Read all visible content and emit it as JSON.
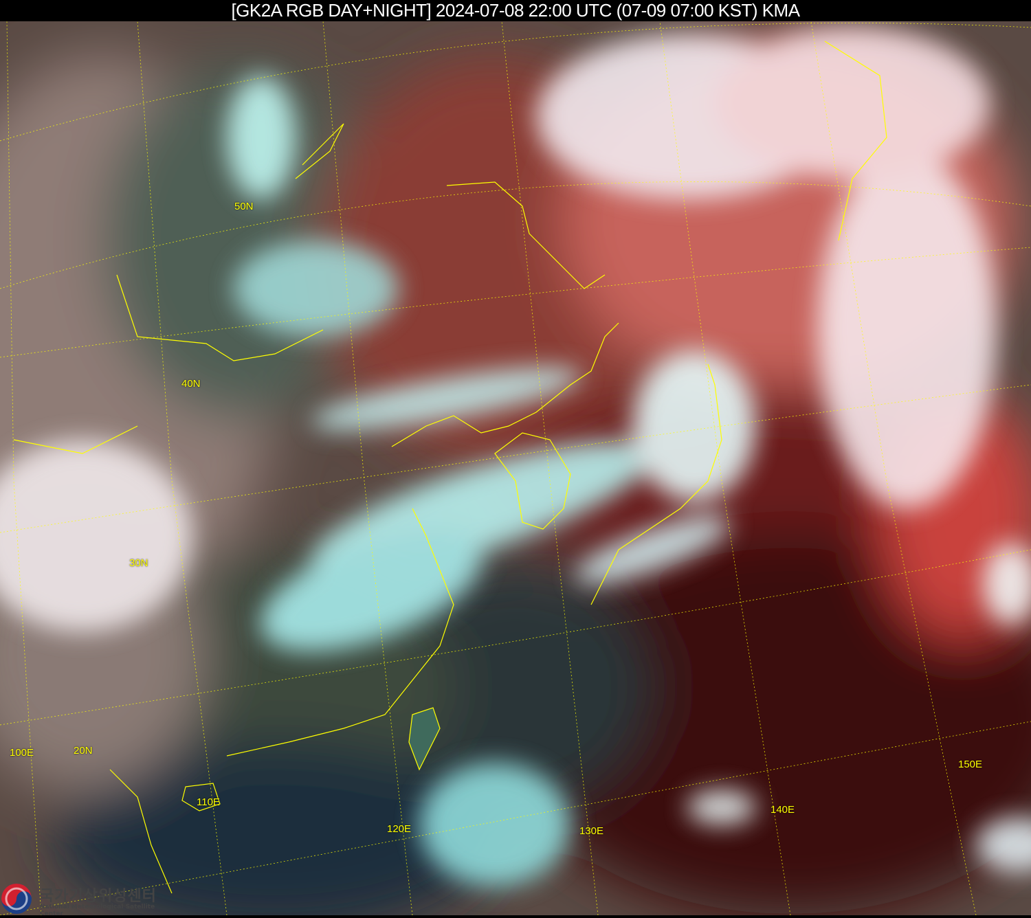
{
  "header": {
    "title": "[GK2A RGB DAY+NIGHT] 2024-07-08 22:00 UTC (07-09 07:00 KST) KMA"
  },
  "map": {
    "latitude_labels": [
      "50N",
      "40N",
      "30N",
      "20N"
    ],
    "longitude_labels": [
      "100E",
      "110E",
      "120E",
      "130E",
      "140E",
      "150E"
    ],
    "grid_color": "#ffff00",
    "coastline_color": "#ffff00"
  },
  "logo": {
    "korean": "국가기상위성센터",
    "english": "National Meteorological Satellite Center"
  }
}
